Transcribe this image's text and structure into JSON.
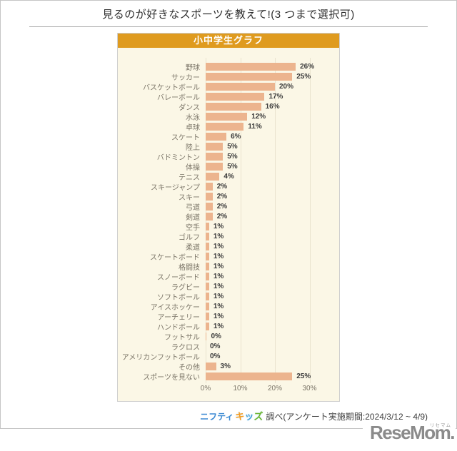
{
  "page": {
    "title": "見るのが好きなスポーツを教えて!(3 つまで選択可)"
  },
  "panel": {
    "header": "小中学生グラフ"
  },
  "chart_data": {
    "type": "bar",
    "orientation": "horizontal",
    "title": "小中学生グラフ",
    "unit": "%",
    "xlim": [
      0,
      30
    ],
    "x_ticks": [
      "0%",
      "10%",
      "20%",
      "30%"
    ],
    "x_tick_values": [
      0,
      10,
      20,
      30
    ],
    "grid": true,
    "categories": [
      "野球",
      "サッカー",
      "バスケットボール",
      "バレーボール",
      "ダンス",
      "水泳",
      "卓球",
      "スケート",
      "陸上",
      "バドミントン",
      "体操",
      "テニス",
      "スキージャンプ",
      "スキー",
      "弓道",
      "剣道",
      "空手",
      "ゴルフ",
      "柔道",
      "スケートボード",
      "格闘技",
      "スノーボード",
      "ラグビー",
      "ソフトボール",
      "アイスホッケー",
      "アーチェリー",
      "ハンドボール",
      "フットサル",
      "ラクロス",
      "アメリカンフットボール",
      "その他",
      "スポーツを見ない"
    ],
    "values": [
      26,
      25,
      20,
      17,
      16,
      12,
      11,
      6,
      5,
      5,
      5,
      4,
      2,
      2,
      2,
      2,
      1,
      1,
      1,
      1,
      1,
      1,
      1,
      1,
      1,
      1,
      1,
      0,
      0,
      0,
      3,
      25
    ],
    "bar_values": [
      26,
      25,
      20,
      17,
      16,
      12,
      11,
      6,
      5,
      5,
      5,
      4,
      2,
      2,
      2,
      2,
      1,
      1,
      1,
      1,
      1,
      1,
      1,
      1,
      1,
      1,
      1,
      0.3,
      0,
      0,
      3,
      25
    ],
    "value_labels": [
      "26%",
      "25%",
      "20%",
      "17%",
      "16%",
      "12%",
      "11%",
      "6%",
      "5%",
      "5%",
      "5%",
      "4%",
      "2%",
      "2%",
      "2%",
      "2%",
      "1%",
      "1%",
      "1%",
      "1%",
      "1%",
      "1%",
      "1%",
      "1%",
      "1%",
      "1%",
      "1%",
      "0%",
      "0%",
      "0%",
      "3%",
      "25%"
    ]
  },
  "footer": {
    "source_brand": "ニフティ",
    "kids_chars": [
      {
        "ch": "キ",
        "color": "#f59b1e"
      },
      {
        "ch": "ッ",
        "color": "#44a0d6"
      },
      {
        "ch": "ズ",
        "color": "#6ab52d"
      }
    ],
    "source_text": "調べ(アンケート実施期間:2024/3/12 ~ 4/9)"
  },
  "logo": {
    "text": "ReseMom.",
    "ruby": "リセマム"
  },
  "colors": {
    "panel_header_bg": "#df9b1f",
    "panel_body_bg": "#fbf7e6",
    "bar": "#ecb48e",
    "gridline": "#e9e3ce",
    "row_label": "#7a7467",
    "value_label": "#3a3a3a",
    "nifty_blue": "#3e8bd3",
    "logo_gray": "#8b8b8b"
  }
}
